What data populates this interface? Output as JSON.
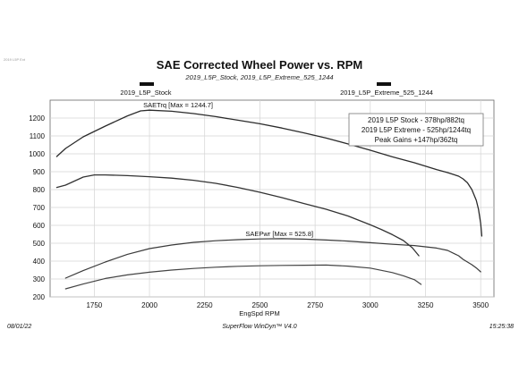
{
  "corner_note": "2019 L5P Ext",
  "chart_data": {
    "type": "line",
    "title": "SAE Corrected Wheel Power vs. RPM",
    "subtitle": "2019_L5P_Stock, 2019_L5P_Extreme_525_1244",
    "run_labels": [
      "2019_L5P_Stock",
      "2019_L5P_Extreme_525_1244"
    ],
    "run_colors": [
      "#111111",
      "#111111"
    ],
    "xlabel": "EngSpd RPM",
    "ylabel": "",
    "xlim": [
      1550,
      3560
    ],
    "ylim": [
      200,
      1300
    ],
    "x_ticks": [
      1750,
      2000,
      2250,
      2500,
      2750,
      3000,
      3250,
      3500
    ],
    "y_ticks": [
      200,
      300,
      400,
      500,
      600,
      700,
      800,
      900,
      1000,
      1100,
      1200
    ],
    "grid": true,
    "legend": {
      "placement": "top-right",
      "lines": [
        "2019 L5P Stock - 378hp/882tq",
        "2019 L5P Extreme - 525hp/1244tq",
        "Peak Gains +147hp/362tq"
      ]
    },
    "annotations": [
      {
        "text": "SAETrq [Max = 1244.7]",
        "x": 1980,
        "y": 1244.7
      },
      {
        "text": "SAEPwr [Max = 525.8]",
        "x": 2500,
        "y": 525.8
      }
    ],
    "series": [
      {
        "name": "2019_L5P_Extreme_525_1244",
        "measure": "SAETrq",
        "color": "#2b2b2b",
        "x": [
          1580,
          1620,
          1700,
          1800,
          1900,
          1960,
          2000,
          2100,
          2200,
          2300,
          2400,
          2500,
          2600,
          2700,
          2800,
          2900,
          3000,
          3100,
          3200,
          3300,
          3350,
          3400,
          3420,
          3440,
          3460,
          3480,
          3490,
          3500,
          3505
        ],
        "y": [
          985,
          1030,
          1095,
          1155,
          1212,
          1240,
          1244,
          1238,
          1225,
          1208,
          1188,
          1168,
          1144,
          1117,
          1088,
          1055,
          1020,
          983,
          950,
          912,
          895,
          875,
          860,
          838,
          800,
          740,
          690,
          610,
          540
        ]
      },
      {
        "name": "2019_L5P_Stock",
        "measure": "SAETrq",
        "color": "#333333",
        "x": [
          1580,
          1620,
          1700,
          1750,
          1800,
          1900,
          2000,
          2100,
          2200,
          2300,
          2400,
          2500,
          2600,
          2700,
          2800,
          2900,
          3000,
          3050,
          3100,
          3150,
          3190,
          3220
        ],
        "y": [
          812,
          825,
          870,
          882,
          882,
          878,
          872,
          864,
          852,
          835,
          812,
          785,
          755,
          722,
          690,
          652,
          603,
          577,
          548,
          515,
          475,
          430
        ]
      },
      {
        "name": "2019_L5P_Extreme_525_1244",
        "measure": "SAEPwr",
        "color": "#3a3a3a",
        "x": [
          1620,
          1700,
          1800,
          1900,
          2000,
          2100,
          2200,
          2300,
          2400,
          2500,
          2600,
          2700,
          2800,
          2900,
          3000,
          3100,
          3200,
          3300,
          3350,
          3400,
          3420,
          3440,
          3460,
          3480,
          3500
        ],
        "y": [
          305,
          347,
          395,
          438,
          470,
          490,
          505,
          514,
          520,
          524,
          525.8,
          523,
          518,
          512,
          503,
          494,
          487,
          473,
          460,
          430,
          410,
          395,
          380,
          362,
          340
        ]
      },
      {
        "name": "2019_L5P_Stock",
        "measure": "SAEPwr",
        "color": "#444444",
        "x": [
          1620,
          1700,
          1800,
          1900,
          2000,
          2100,
          2200,
          2300,
          2400,
          2500,
          2600,
          2700,
          2800,
          2900,
          3000,
          3100,
          3150,
          3200,
          3230
        ],
        "y": [
          245,
          272,
          303,
          323,
          338,
          350,
          359,
          366,
          371,
          374,
          376,
          377,
          378,
          372,
          361,
          336,
          318,
          296,
          270
        ]
      }
    ],
    "footer": {
      "left": "08/01/22",
      "center": "SuperFlow WinDyn™ V4.0",
      "right": "15:25:38"
    }
  }
}
